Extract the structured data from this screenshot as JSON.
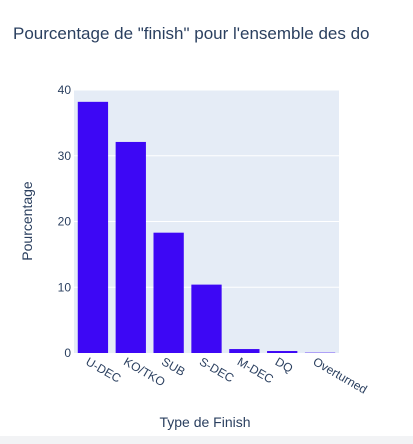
{
  "chart_data": {
    "type": "bar",
    "title": "Pourcentage de \"finish\" pour l'ensemble des do",
    "xlabel": "Type de Finish",
    "ylabel": "Pourcentage",
    "categories": [
      "U-DEC",
      "KO/TKO",
      "SUB",
      "S-DEC",
      "M-DEC",
      "DQ",
      "Overturned"
    ],
    "values": [
      38.2,
      32.1,
      18.3,
      10.4,
      0.6,
      0.3,
      0.05
    ],
    "ylim": [
      0,
      40
    ],
    "yticks": [
      0,
      10,
      20,
      30,
      40
    ],
    "grid": true,
    "legend": "none",
    "colors": {
      "bar": "#3d07f5",
      "plot_bg": "#e5ecf6",
      "grid": "#ffffff",
      "text": "#2a3f5f"
    }
  }
}
